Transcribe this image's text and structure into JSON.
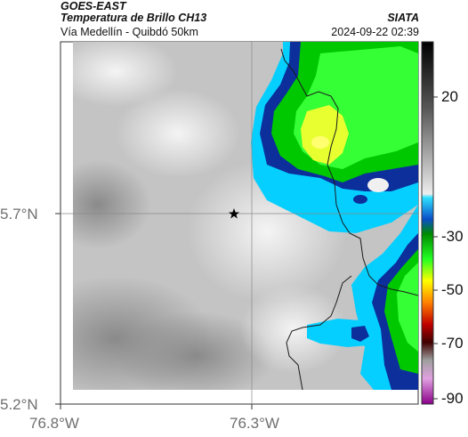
{
  "header": {
    "satellite": "GOES-EAST",
    "product": "Temperatura de Brillo CH13",
    "region": "Vía Medellín - Quibdó 50km",
    "agency": "SIATA",
    "timestamp": "2024-09-22 02:39"
  },
  "axes": {
    "lat_labels": [
      "5.7°N",
      "5.2°N"
    ],
    "lon_labels": [
      "76.8°W",
      "76.3°W"
    ],
    "gridlines": true
  },
  "colorbar": {
    "labels": [
      "20",
      "-30",
      "-50",
      "-70",
      "-90"
    ],
    "palette": [
      "#000000",
      "#7a7a7a",
      "#f2f2f2",
      "#00cfff",
      "#0040c0",
      "#00a000",
      "#00ff00",
      "#ffff00",
      "#ff7000",
      "#c00000",
      "#a000a0"
    ]
  },
  "marker": {
    "icon": "star-marker-icon"
  }
}
